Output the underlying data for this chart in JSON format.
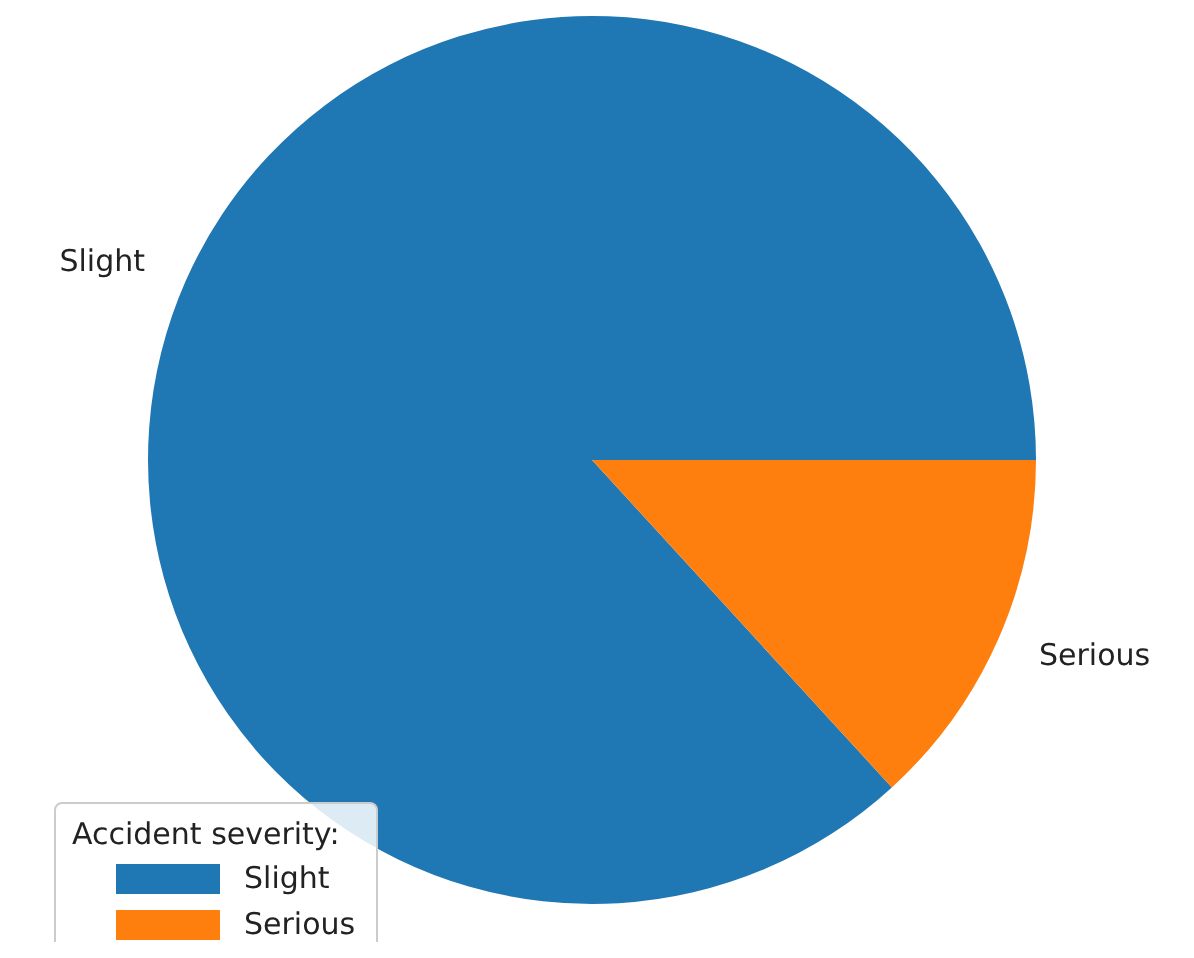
{
  "chart_data": {
    "type": "pie",
    "legend_title": "Accident severity:",
    "legend": "bottom left",
    "categories": [
      "Slight",
      "Serious"
    ],
    "values": [
      86.8,
      13.2
    ],
    "colors": [
      "#1f77b4",
      "#ff7f0e"
    ]
  }
}
